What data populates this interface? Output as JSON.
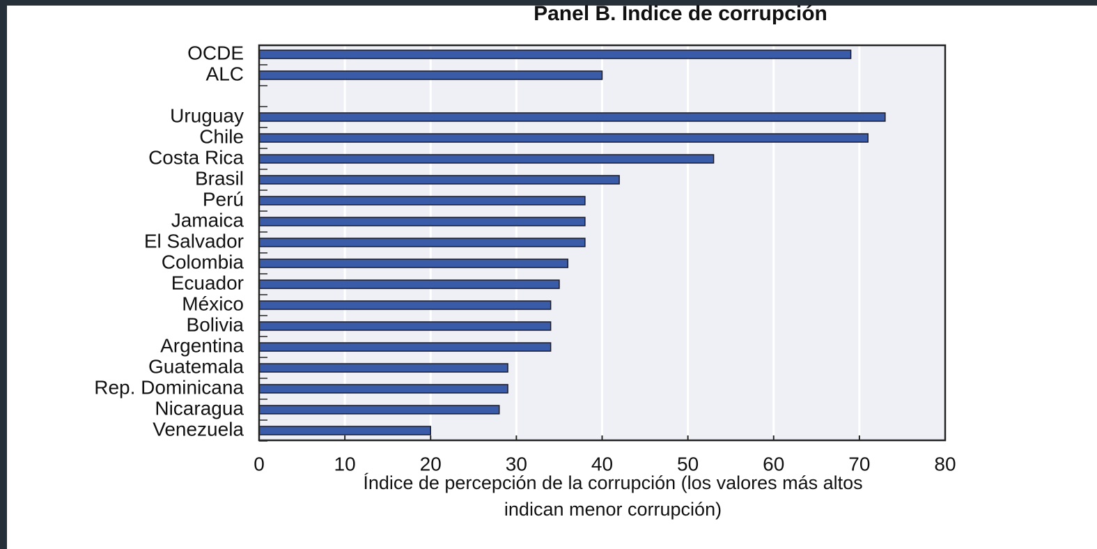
{
  "chart_data": {
    "type": "bar",
    "orientation": "horizontal",
    "title": "Panel B.  Indice de corrupción",
    "xlabel": [
      "Índice de percepción de la corrupción (los valores más altos",
      "indican menor corrupción)"
    ],
    "categories": [
      "OCDE",
      "ALC",
      null,
      "Uruguay",
      "Chile",
      "Costa Rica",
      "Brasil",
      "Perú",
      "Jamaica",
      "El Salvador",
      "Colombia",
      "Ecuador",
      "México",
      "Bolivia",
      "Argentina",
      "Guatemala",
      "Rep. Dominicana",
      "Nicaragua",
      "Venezuela"
    ],
    "values": [
      69,
      40,
      null,
      73,
      71,
      53,
      42,
      38,
      38,
      38,
      36,
      35,
      34,
      34,
      34,
      29,
      29,
      28,
      20
    ],
    "color": "#3a5ba8",
    "xlim": [
      0,
      80
    ],
    "xticks": [
      0,
      10,
      20,
      30,
      40,
      50,
      60,
      70,
      80
    ],
    "grid": true
  }
}
